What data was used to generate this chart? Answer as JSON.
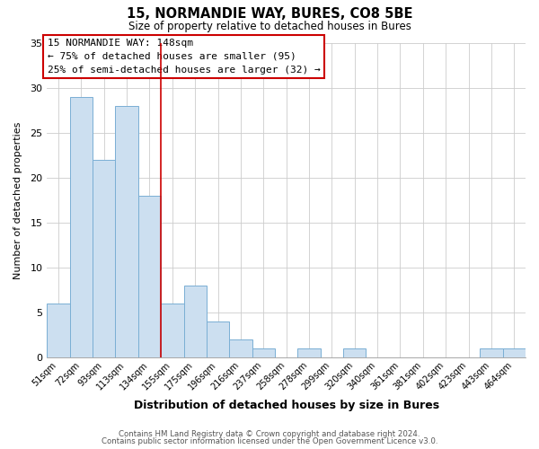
{
  "title": "15, NORMANDIE WAY, BURES, CO8 5BE",
  "subtitle": "Size of property relative to detached houses in Bures",
  "xlabel": "Distribution of detached houses by size in Bures",
  "ylabel": "Number of detached properties",
  "bar_labels": [
    "51sqm",
    "72sqm",
    "93sqm",
    "113sqm",
    "134sqm",
    "155sqm",
    "175sqm",
    "196sqm",
    "216sqm",
    "237sqm",
    "258sqm",
    "278sqm",
    "299sqm",
    "320sqm",
    "340sqm",
    "361sqm",
    "381sqm",
    "402sqm",
    "423sqm",
    "443sqm",
    "464sqm"
  ],
  "bar_values": [
    6,
    29,
    22,
    28,
    18,
    6,
    8,
    4,
    2,
    1,
    0,
    1,
    0,
    1,
    0,
    0,
    0,
    0,
    0,
    1,
    1
  ],
  "bar_color": "#ccdff0",
  "bar_edge_color": "#7aafd4",
  "ylim": [
    0,
    35
  ],
  "yticks": [
    0,
    5,
    10,
    15,
    20,
    25,
    30,
    35
  ],
  "vline_x": 4.5,
  "vline_color": "#cc0000",
  "annotation_box_text": "15 NORMANDIE WAY: 148sqm\n← 75% of detached houses are smaller (95)\n25% of semi-detached houses are larger (32) →",
  "footer_line1": "Contains HM Land Registry data © Crown copyright and database right 2024.",
  "footer_line2": "Contains public sector information licensed under the Open Government Licence v3.0.",
  "background_color": "#ffffff",
  "grid_color": "#cccccc"
}
